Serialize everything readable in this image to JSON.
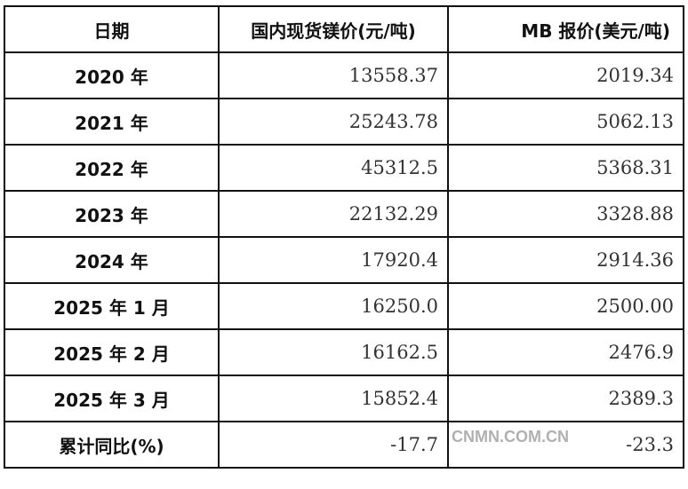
{
  "table": {
    "headers": [
      "日期",
      "国内现货镁价(元/吨)",
      "MB 报价(美元/吨)"
    ],
    "rows": [
      [
        "2020 年",
        "13558.37",
        "2019.34"
      ],
      [
        "2021 年",
        "25243.78",
        "5062.13"
      ],
      [
        "2022 年",
        "45312.5",
        "5368.31"
      ],
      [
        "2023 年",
        "22132.29",
        "3328.88"
      ],
      [
        "2024 年",
        "17920.4",
        "2914.36"
      ],
      [
        "2025 年 1 月",
        "16250.0",
        "2500.00"
      ],
      [
        "2025 年 2 月",
        "16162.5",
        "2476.9"
      ],
      [
        "2025 年 3 月",
        "15852.4",
        "2389.3"
      ],
      [
        "累计同比(%)",
        "-17.7",
        "-23.3"
      ]
    ]
  },
  "watermark": "CNMN.COM.CN"
}
